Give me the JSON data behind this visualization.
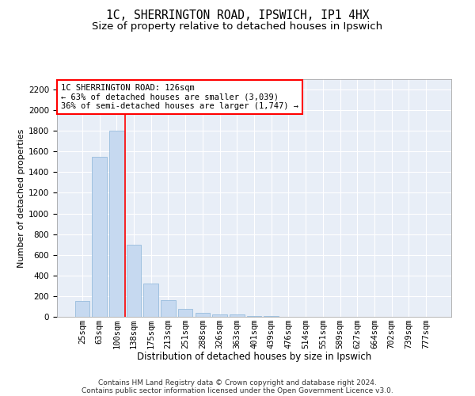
{
  "title1": "1C, SHERRINGTON ROAD, IPSWICH, IP1 4HX",
  "title2": "Size of property relative to detached houses in Ipswich",
  "xlabel": "Distribution of detached houses by size in Ipswich",
  "ylabel": "Number of detached properties",
  "bar_labels": [
    "25sqm",
    "63sqm",
    "100sqm",
    "138sqm",
    "175sqm",
    "213sqm",
    "251sqm",
    "288sqm",
    "326sqm",
    "363sqm",
    "401sqm",
    "439sqm",
    "476sqm",
    "514sqm",
    "551sqm",
    "589sqm",
    "627sqm",
    "664sqm",
    "702sqm",
    "739sqm",
    "777sqm"
  ],
  "bar_values": [
    150,
    1550,
    1800,
    700,
    320,
    160,
    80,
    40,
    25,
    20,
    10,
    5,
    3,
    2,
    1,
    1,
    1,
    0,
    0,
    0,
    0
  ],
  "bar_color": "#c6d9f0",
  "bar_edge_color": "#8ab4d8",
  "vline_x": 2.5,
  "vline_color": "red",
  "annotation_line1": "1C SHERRINGTON ROAD: 126sqm",
  "annotation_line2": "← 63% of detached houses are smaller (3,039)",
  "annotation_line3": "36% of semi-detached houses are larger (1,747) →",
  "annotation_box_color": "white",
  "annotation_box_edge_color": "red",
  "ylim": [
    0,
    2300
  ],
  "yticks": [
    0,
    200,
    400,
    600,
    800,
    1000,
    1200,
    1400,
    1600,
    1800,
    2000,
    2200
  ],
  "bg_color": "#e8eef7",
  "grid_color": "white",
  "footer_line1": "Contains HM Land Registry data © Crown copyright and database right 2024.",
  "footer_line2": "Contains public sector information licensed under the Open Government Licence v3.0.",
  "title1_fontsize": 10.5,
  "title2_fontsize": 9.5,
  "xlabel_fontsize": 8.5,
  "ylabel_fontsize": 8.0,
  "tick_fontsize": 7.5,
  "annotation_fontsize": 7.5,
  "footer_fontsize": 6.5
}
